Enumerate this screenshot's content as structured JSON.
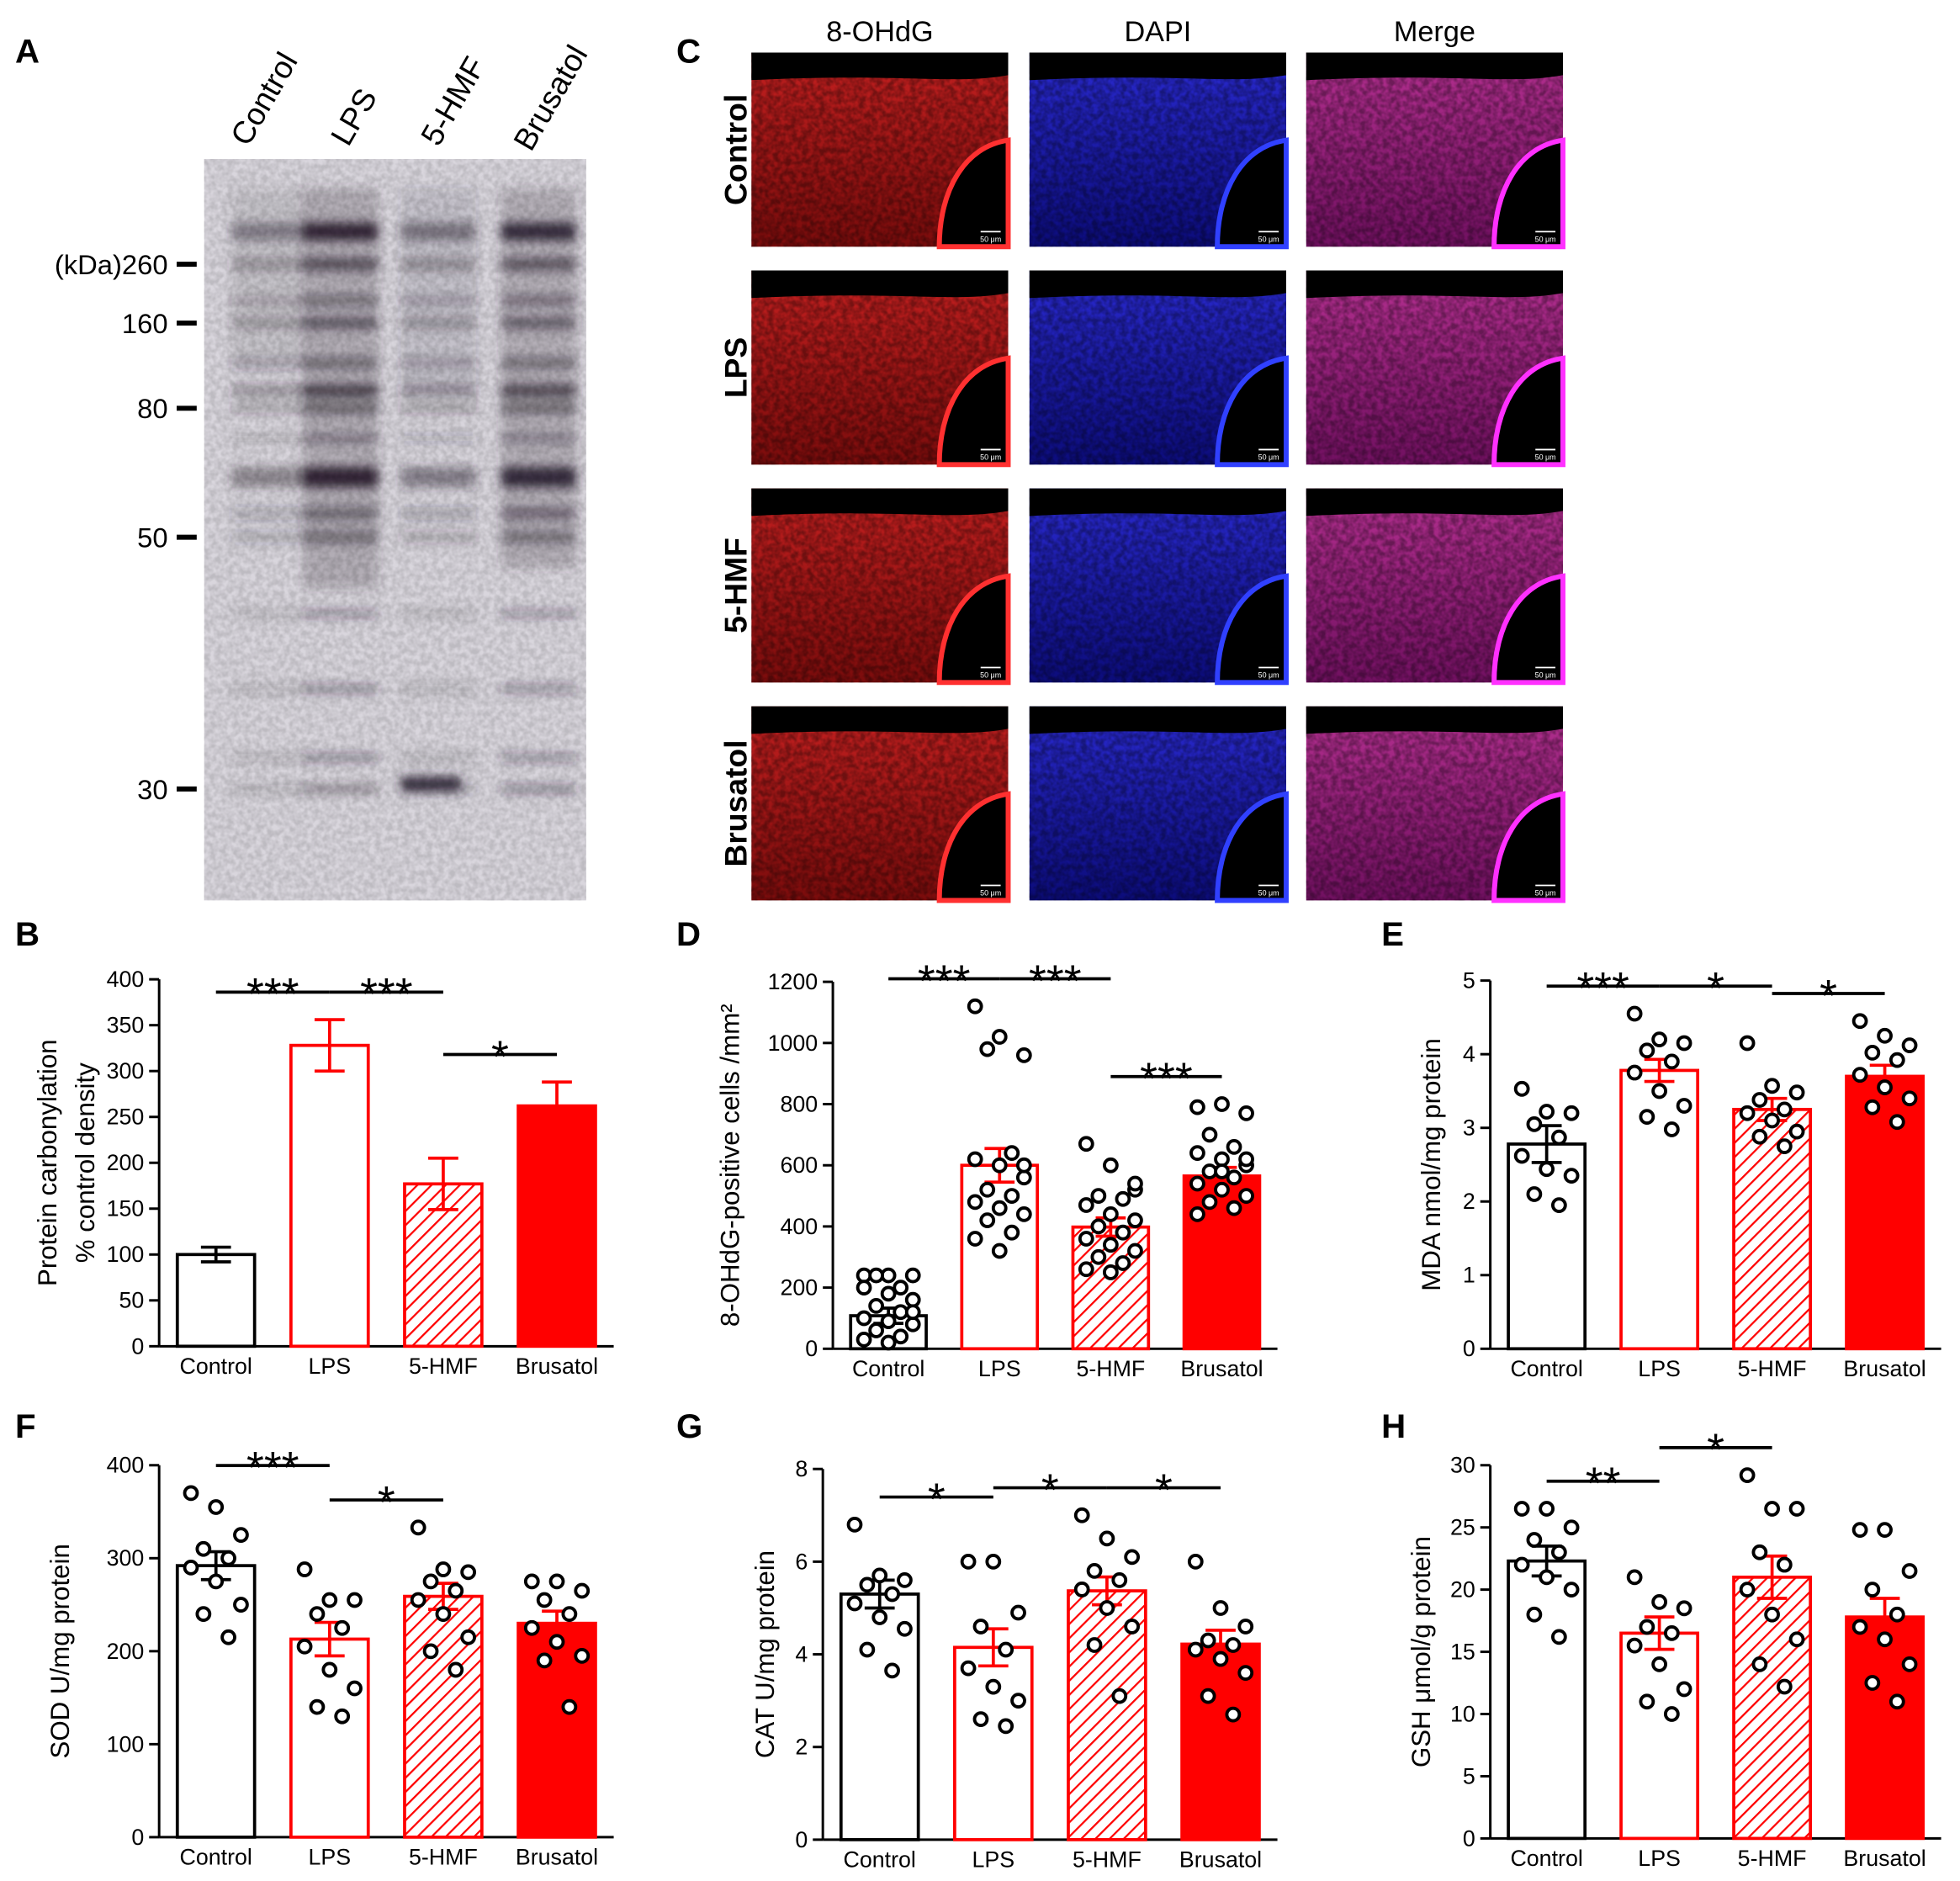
{
  "blot": {
    "label": "A",
    "lanes": [
      "Control",
      "LPS",
      "5-HMF",
      "Brusatol"
    ],
    "markers": [
      "(kDa)260",
      "160",
      "80",
      "50",
      "30"
    ]
  },
  "micrographs": {
    "label": "C",
    "columns": [
      "8-OHdG",
      "DAPI",
      "Merge"
    ],
    "rows": [
      "Control",
      "LPS",
      "5-HMF",
      "Brusatol"
    ],
    "scale_bar": "50 μm"
  },
  "chart_data": [
    {
      "type": "bar",
      "label": "B",
      "ylabel": [
        "Protein carbonylation",
        "% control density"
      ],
      "categories": [
        "Control",
        "LPS",
        "5-HMF",
        "Brusatol"
      ],
      "values": [
        100,
        328,
        177,
        262
      ],
      "errors": [
        8,
        28,
        28,
        26
      ],
      "colors": [
        "#000000",
        "#ff0000",
        "#ff0000",
        "#ff0000"
      ],
      "bar_styles": [
        "outline",
        "outline",
        "hatched",
        "filled"
      ],
      "ylim": [
        0,
        400
      ],
      "yticks": [
        0,
        50,
        100,
        150,
        200,
        250,
        300,
        350,
        400
      ],
      "significance": [
        {
          "groups": [
            "Control",
            "LPS"
          ],
          "label": "***"
        },
        {
          "groups": [
            "LPS",
            "5-HMF"
          ],
          "label": "***"
        },
        {
          "groups": [
            "5-HMF",
            "Brusatol"
          ],
          "label": "*"
        }
      ]
    },
    {
      "type": "bar",
      "label": "D",
      "ylabel": "8-OHdG-positive cells /mm²",
      "categories": [
        "Control",
        "LPS",
        "5-HMF",
        "Brusatol"
      ],
      "values": [
        108,
        600,
        398,
        565
      ],
      "errors": [
        25,
        55,
        30,
        28
      ],
      "colors": [
        "#000000",
        "#ff0000",
        "#ff0000",
        "#ff0000"
      ],
      "bar_styles": [
        "outline",
        "outline",
        "hatched",
        "filled"
      ],
      "ylim": [
        0,
        1200
      ],
      "yticks": [
        0,
        200,
        400,
        600,
        800,
        1000,
        1200
      ],
      "points": [
        [
          240,
          240,
          240,
          240,
          200,
          200,
          180,
          160,
          140,
          120,
          100,
          90,
          80,
          60,
          40,
          30,
          20,
          120
        ],
        [
          1120,
          1020,
          960,
          980,
          640,
          620,
          600,
          560,
          520,
          500,
          480,
          460,
          440,
          420,
          380,
          360,
          320,
          600
        ],
        [
          670,
          600,
          520,
          500,
          490,
          470,
          440,
          420,
          400,
          380,
          360,
          340,
          320,
          300,
          280,
          260,
          250,
          540
        ],
        [
          790,
          800,
          770,
          700,
          660,
          640,
          620,
          600,
          580,
          560,
          540,
          520,
          500,
          480,
          460,
          440,
          580,
          620
        ]
      ],
      "significance": [
        {
          "groups": [
            "Control",
            "LPS"
          ],
          "label": "***"
        },
        {
          "groups": [
            "LPS",
            "5-HMF"
          ],
          "label": "***"
        },
        {
          "groups": [
            "5-HMF",
            "Brusatol"
          ],
          "label": "***"
        }
      ]
    },
    {
      "type": "bar",
      "label": "E",
      "ylabel": "MDA  nmol/mg protein",
      "categories": [
        "Control",
        "LPS",
        "5-HMF",
        "Brusatol"
      ],
      "values": [
        2.78,
        3.78,
        3.25,
        3.7
      ],
      "errors": [
        0.25,
        0.15,
        0.15,
        0.15
      ],
      "colors": [
        "#000000",
        "#ff0000",
        "#ff0000",
        "#ff0000"
      ],
      "bar_styles": [
        "outline",
        "outline",
        "hatched",
        "filled"
      ],
      "ylim": [
        0,
        5
      ],
      "yticks": [
        0,
        1,
        2,
        3,
        4,
        5
      ],
      "points": [
        [
          3.53,
          3.22,
          3.2,
          3.05,
          2.87,
          2.62,
          2.44,
          2.35,
          2.1,
          1.95
        ],
        [
          4.55,
          4.2,
          4.15,
          4.05,
          3.9,
          3.75,
          3.5,
          3.3,
          3.15,
          2.98
        ],
        [
          4.15,
          3.57,
          3.48,
          3.38,
          3.25,
          3.2,
          3.1,
          2.95,
          2.88,
          2.75
        ],
        [
          4.45,
          4.25,
          4.12,
          4.02,
          3.92,
          3.72,
          3.55,
          3.4,
          3.28,
          3.08
        ]
      ],
      "significance": [
        {
          "groups": [
            "Control",
            "LPS"
          ],
          "label": "***"
        },
        {
          "groups": [
            "LPS",
            "5-HMF"
          ],
          "label": "*"
        },
        {
          "groups": [
            "5-HMF",
            "Brusatol"
          ],
          "label": "*"
        }
      ]
    },
    {
      "type": "bar",
      "label": "F",
      "ylabel": "SOD  U/mg protein",
      "categories": [
        "Control",
        "LPS",
        "5-HMF",
        "Brusatol"
      ],
      "values": [
        292,
        213,
        259,
        230
      ],
      "errors": [
        15,
        18,
        14,
        13
      ],
      "colors": [
        "#000000",
        "#ff0000",
        "#ff0000",
        "#ff0000"
      ],
      "bar_styles": [
        "outline",
        "outline",
        "hatched",
        "filled"
      ],
      "ylim": [
        0,
        400
      ],
      "yticks": [
        0,
        100,
        200,
        300,
        400
      ],
      "points": [
        [
          370,
          355,
          325,
          310,
          300,
          290,
          275,
          250,
          240,
          215
        ],
        [
          288,
          255,
          255,
          240,
          225,
          205,
          180,
          160,
          140,
          130
        ],
        [
          333,
          288,
          285,
          275,
          265,
          255,
          240,
          215,
          200,
          180
        ],
        [
          275,
          275,
          265,
          255,
          240,
          225,
          210,
          195,
          190,
          140
        ]
      ],
      "significance": [
        {
          "groups": [
            "Control",
            "LPS"
          ],
          "label": "***"
        },
        {
          "groups": [
            "LPS",
            "5-HMF"
          ],
          "label": "*"
        }
      ]
    },
    {
      "type": "bar",
      "label": "G",
      "ylabel": "CAT  U/mg protein",
      "categories": [
        "Control",
        "LPS",
        "5-HMF",
        "Brusatol"
      ],
      "values": [
        5.3,
        4.15,
        5.37,
        4.22
      ],
      "errors": [
        0.3,
        0.4,
        0.3,
        0.3
      ],
      "colors": [
        "#000000",
        "#ff0000",
        "#ff0000",
        "#ff0000"
      ],
      "bar_styles": [
        "outline",
        "outline",
        "hatched",
        "filled"
      ],
      "ylim": [
        0,
        8
      ],
      "yticks": [
        0,
        2,
        4,
        6,
        8
      ],
      "points": [
        [
          6.8,
          5.7,
          5.6,
          5.5,
          5.3,
          5.1,
          4.8,
          4.55,
          4.1,
          3.65
        ],
        [
          6.0,
          6.0,
          4.9,
          4.6,
          4.1,
          3.7,
          3.3,
          3.0,
          2.6,
          2.45
        ],
        [
          7.0,
          6.5,
          6.1,
          5.8,
          5.6,
          5.4,
          5.0,
          4.6,
          4.2,
          3.1
        ],
        [
          6.0,
          5.0,
          4.6,
          4.3,
          4.2,
          4.1,
          3.9,
          3.6,
          3.1,
          2.7
        ]
      ],
      "significance": [
        {
          "groups": [
            "Control",
            "LPS"
          ],
          "label": "*"
        },
        {
          "groups": [
            "LPS",
            "5-HMF"
          ],
          "label": "*"
        },
        {
          "groups": [
            "5-HMF",
            "Brusatol"
          ],
          "label": "*"
        }
      ]
    },
    {
      "type": "bar",
      "label": "H",
      "ylabel": "GSH  μmol/g protein",
      "categories": [
        "Control",
        "LPS",
        "5-HMF",
        "Brusatol"
      ],
      "values": [
        22.3,
        16.5,
        21.0,
        17.8
      ],
      "errors": [
        1.2,
        1.3,
        1.7,
        1.5
      ],
      "colors": [
        "#000000",
        "#ff0000",
        "#ff0000",
        "#ff0000"
      ],
      "bar_styles": [
        "outline",
        "outline",
        "hatched",
        "filled"
      ],
      "ylim": [
        0,
        30
      ],
      "yticks": [
        0,
        5,
        10,
        15,
        20,
        25,
        30
      ],
      "points": [
        [
          26.5,
          26.5,
          25,
          24,
          23,
          22,
          21,
          20,
          18,
          16.2
        ],
        [
          21,
          19,
          18.5,
          17,
          16.5,
          15.5,
          14,
          12,
          11,
          10
        ],
        [
          29.2,
          26.5,
          26.5,
          23,
          22,
          20,
          18,
          16,
          14,
          12.2
        ],
        [
          24.8,
          24.8,
          21.5,
          20,
          18,
          17,
          16,
          14,
          12.5,
          11
        ]
      ],
      "significance": [
        {
          "groups": [
            "Control",
            "LPS"
          ],
          "label": "**"
        },
        {
          "groups": [
            "LPS",
            "5-HMF"
          ],
          "label": "*"
        }
      ]
    }
  ]
}
